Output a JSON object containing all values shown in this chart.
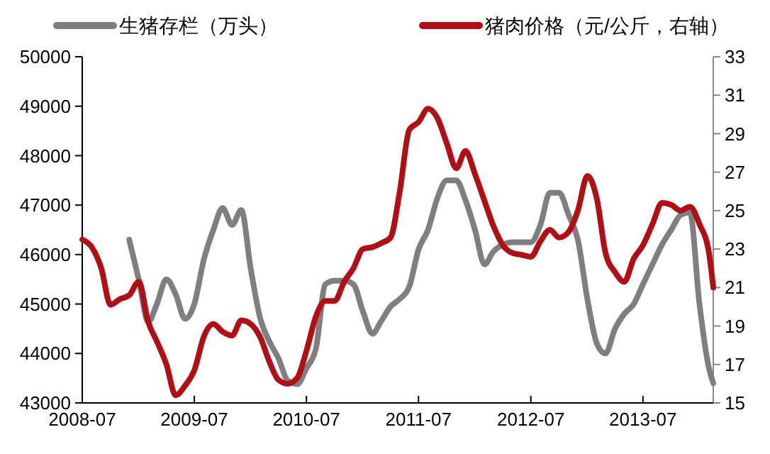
{
  "chart_data": {
    "type": "line",
    "legend": "top",
    "grid": false,
    "marker": "none",
    "line_style": "solid",
    "xlim": [
      "2008-07",
      "2014-02-15"
    ],
    "xticks": [
      "2008-07",
      "2009-07",
      "2010-07",
      "2011-07",
      "2012-07",
      "2013-07"
    ],
    "ylim": [
      43000,
      50000
    ],
    "yticks": [
      43000,
      44000,
      45000,
      46000,
      47000,
      48000,
      49000,
      50000
    ],
    "y2lim": [
      15,
      33
    ],
    "y2ticks": [
      15,
      17,
      19,
      21,
      23,
      25,
      27,
      29,
      31,
      33
    ],
    "series": [
      {
        "name": "生猪存栏（万头）",
        "color": "#7f7f7f",
        "x": [
          "2008-12",
          "2009-01",
          "2009-02",
          "2009-03",
          "2009-04",
          "2009-05",
          "2009-06",
          "2009-07",
          "2009-08",
          "2009-09",
          "2009-10",
          "2009-11",
          "2009-12",
          "2010-01",
          "2010-02",
          "2010-03",
          "2010-04",
          "2010-05",
          "2010-06",
          "2010-07",
          "2010-08",
          "2010-09",
          "2010-10",
          "2010-11",
          "2010-12",
          "2011-01",
          "2011-02",
          "2011-03",
          "2011-04",
          "2011-05",
          "2011-06",
          "2011-07",
          "2011-08",
          "2011-09",
          "2011-10",
          "2011-11",
          "2011-12",
          "2012-01",
          "2012-02",
          "2012-03",
          "2012-04",
          "2012-05",
          "2012-06",
          "2012-07",
          "2012-08",
          "2012-09",
          "2012-10",
          "2012-11",
          "2012-12",
          "2013-01",
          "2013-02",
          "2013-03",
          "2013-04",
          "2013-05",
          "2013-06",
          "2013-07",
          "2013-08",
          "2013-09",
          "2013-10",
          "2013-11",
          "2013-12",
          "2014-01",
          "2014-02",
          "2014-02-15"
        ],
        "values": [
          46300,
          45500,
          44640,
          45000,
          45500,
          45200,
          44700,
          45000,
          45900,
          46500,
          46940,
          46600,
          46900,
          45700,
          44700,
          44260,
          43900,
          43450,
          43380,
          43700,
          44100,
          45400,
          45470,
          45470,
          45400,
          44850,
          44400,
          44650,
          44950,
          45100,
          45350,
          46100,
          46500,
          47150,
          47500,
          47500,
          47100,
          46500,
          45800,
          46060,
          46200,
          46250,
          46250,
          46250,
          46600,
          47250,
          47250,
          46800,
          46300,
          45100,
          44200,
          44000,
          44500,
          44800,
          45000,
          45400,
          45800,
          46200,
          46500,
          46800,
          46850,
          45000,
          43700,
          43400
        ]
      },
      {
        "name": "猪肉价格（元/公斤，右轴）",
        "color": "#b01015",
        "axis": "y2",
        "x": [
          "2008-07",
          "2008-08",
          "2008-09",
          "2008-10",
          "2008-11",
          "2008-12",
          "2009-01",
          "2009-02",
          "2009-03",
          "2009-04",
          "2009-05",
          "2009-06",
          "2009-07",
          "2009-08",
          "2009-09",
          "2009-10",
          "2009-11",
          "2009-12",
          "2010-01",
          "2010-02",
          "2010-03",
          "2010-04",
          "2010-05",
          "2010-06",
          "2010-07",
          "2010-08",
          "2010-09",
          "2010-10",
          "2010-11",
          "2010-12",
          "2011-01",
          "2011-02",
          "2011-03",
          "2011-04",
          "2011-05",
          "2011-06",
          "2011-07",
          "2011-08",
          "2011-09",
          "2011-10",
          "2011-11",
          "2011-12",
          "2012-01",
          "2012-02",
          "2012-03",
          "2012-04",
          "2012-05",
          "2012-06",
          "2012-07",
          "2012-08",
          "2012-09",
          "2012-10",
          "2012-11",
          "2012-12",
          "2013-01",
          "2013-02",
          "2013-03",
          "2013-04",
          "2013-05",
          "2013-06",
          "2013-07",
          "2013-08",
          "2013-09",
          "2013-10",
          "2013-11",
          "2013-12",
          "2014-01",
          "2014-02",
          "2014-02-15"
        ],
        "values": [
          23.5,
          23.1,
          22.0,
          20.1,
          20.4,
          20.6,
          21.3,
          19.2,
          18.2,
          17.0,
          15.4,
          15.9,
          16.7,
          18.45,
          19.1,
          18.7,
          18.5,
          19.3,
          19.1,
          18.4,
          17.2,
          16.2,
          16.0,
          16.3,
          17.7,
          19.5,
          20.3,
          20.3,
          21.3,
          22.0,
          23.0,
          23.1,
          23.3,
          23.6,
          26.0,
          29.2,
          29.6,
          30.3,
          29.8,
          28.5,
          27.2,
          28.1,
          26.9,
          25.5,
          24.2,
          23.2,
          22.8,
          22.7,
          22.6,
          23.4,
          24.0,
          23.6,
          23.9,
          25.0,
          26.8,
          25.6,
          22.8,
          21.8,
          21.3,
          22.5,
          23.2,
          24.3,
          25.4,
          25.3,
          25.0,
          25.2,
          24.3,
          22.8,
          21.0
        ]
      }
    ]
  }
}
